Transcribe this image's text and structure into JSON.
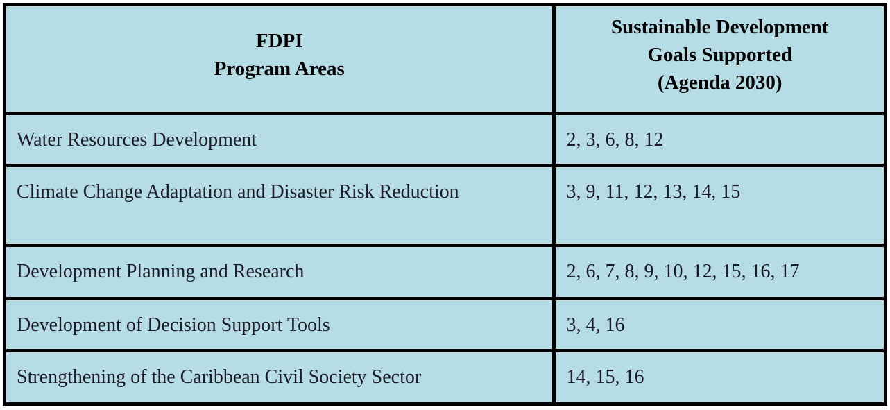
{
  "table": {
    "headers": {
      "program_areas": "FDPI\nProgram Areas",
      "sdgs": "Sustainable Development\nGoals Supported\n(Agenda 2030)"
    },
    "rows": [
      {
        "program_area": "Water Resources Development",
        "sdgs": "2, 3, 6, 8, 12"
      },
      {
        "program_area": "Climate Change Adaptation and Disaster Risk Reduction",
        "sdgs": "3, 9, 11, 12, 13, 14, 15"
      },
      {
        "program_area": "Development Planning and Research",
        "sdgs": "2, 6, 7, 8, 9, 10, 12, 15, 16, 17"
      },
      {
        "program_area": "Development of Decision Support Tools",
        "sdgs": "3, 4, 16"
      },
      {
        "program_area": "Strengthening of the Caribbean Civil Society Sector",
        "sdgs": "14, 15, 16"
      }
    ],
    "colors": {
      "cell_background": "#b6dde5",
      "border": "#000000",
      "header_text": "#000000",
      "body_text": "#1c1c28"
    }
  }
}
